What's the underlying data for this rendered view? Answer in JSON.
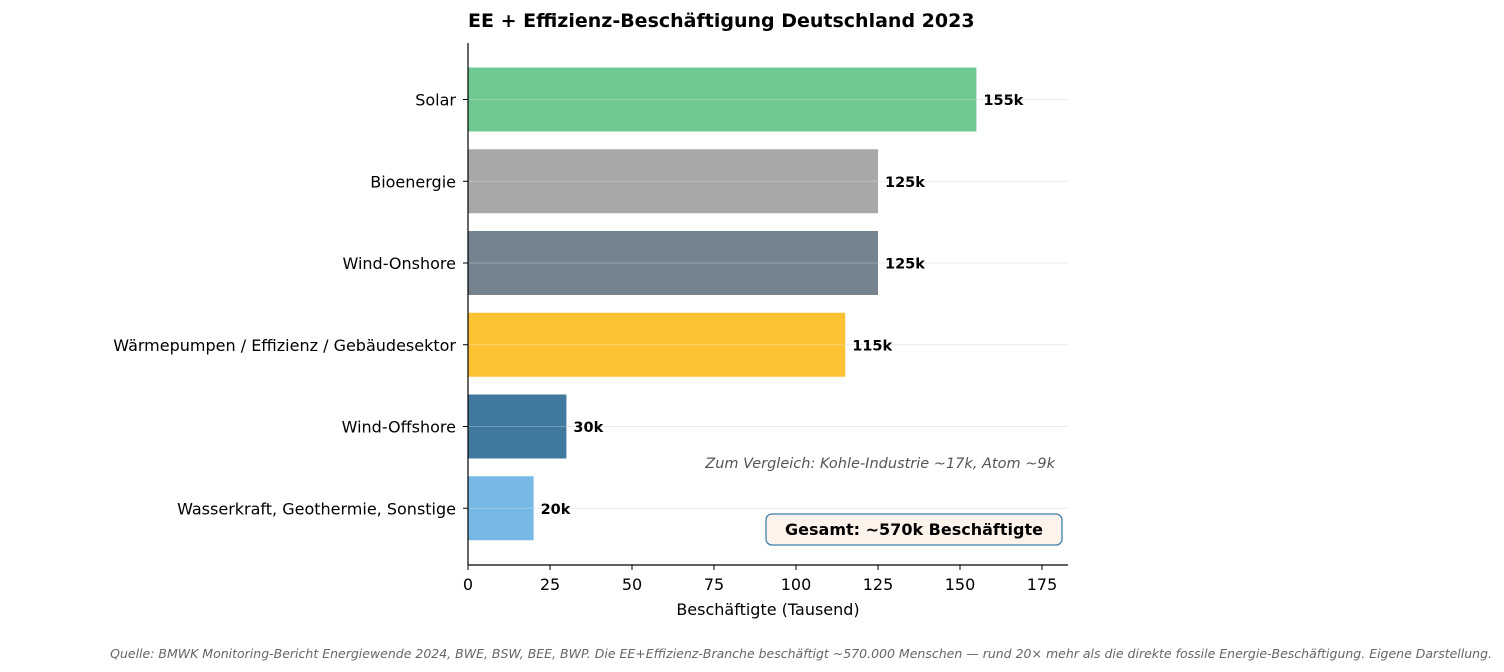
{
  "chart_data": {
    "type": "bar",
    "orientation": "horizontal",
    "title": "EE + Effizienz-Beschäftigung Deutschland 2023",
    "xlabel": "Beschäftigte (Tausend)",
    "ylabel": "",
    "xlim": [
      0,
      183
    ],
    "xticks": [
      0,
      25,
      50,
      75,
      100,
      125,
      150,
      175
    ],
    "grid": "vertical-category-lines",
    "categories": [
      "Solar",
      "Bioenergie",
      "Wind-Onshore",
      "Wärmepumpen / Effizienz / Gebäudesektor",
      "Wind-Offshore",
      "Wasserkraft, Geothermie, Sonstige"
    ],
    "values": [
      155,
      125,
      125,
      115,
      30,
      20
    ],
    "data_labels": [
      "155k",
      "125k",
      "125k",
      "115k",
      "30k",
      "20k"
    ],
    "colors": [
      "#6fc792",
      "#a8a8a8",
      "#75838f",
      "#fdc134",
      "#41789e",
      "#77b9e5"
    ],
    "annotations": {
      "comparison": "Zum Vergleich: Kohle-Industrie ~17k, Atom ~9k",
      "total": "Gesamt: ~570k Beschäftigte"
    },
    "total_box_colors": {
      "fill": "#fdf3ea",
      "stroke": "#3f7fae"
    }
  },
  "footer": {
    "source": "Quelle: BMWK Monitoring-Bericht Energiewende 2024, BWE, BSW, BEE, BWP. Die EE+Effizienz-Branche beschäftigt ~570.000 Menschen — rund 20× mehr als die direkte fossile Energie-Beschäftigung. Eigene Darstellung."
  }
}
